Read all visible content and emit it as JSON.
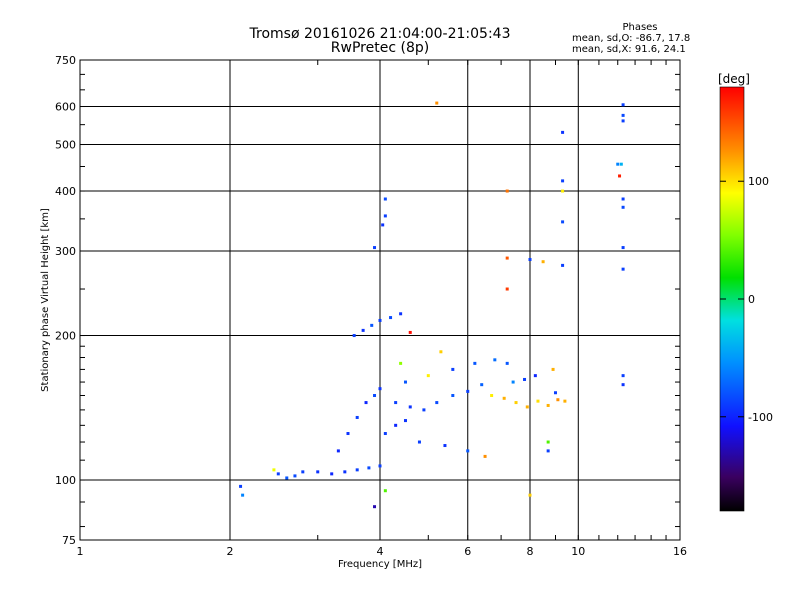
{
  "header": {
    "title_line1": "Tromsø 20161026 21:04:00-21:05:43",
    "title_line2": "RwPretec (8p)",
    "phases_title": "Phases",
    "stats_o": "mean, sd,O: -86.7, 17.8",
    "stats_x": "mean, sd,X:  91.6, 24.1"
  },
  "chart_data": {
    "type": "scatter",
    "xlabel": "Frequency [MHz]",
    "ylabel": "Stationary phase Virtual Height [km]",
    "x_scale": "log",
    "y_scale": "log",
    "xlim": [
      1,
      16
    ],
    "ylim": [
      75,
      750
    ],
    "x_ticks": [
      1,
      2,
      4,
      6,
      8,
      10,
      16
    ],
    "x_tick_labels": [
      "1",
      "2",
      "4",
      "6",
      "8",
      "10",
      "16"
    ],
    "y_ticks": [
      75,
      100,
      200,
      300,
      400,
      500,
      600,
      750
    ],
    "y_tick_labels": [
      "75",
      "100",
      "200",
      "300",
      "400",
      "500",
      "600",
      "750"
    ],
    "grid": true,
    "colorbar": {
      "label": "[deg]",
      "range": [
        -180,
        180
      ],
      "ticks": [
        100,
        0,
        -100
      ],
      "tick_labels": [
        "100",
        "0",
        "-100"
      ]
    },
    "points": [
      {
        "x": 2.1,
        "y": 97,
        "phase": -90
      },
      {
        "x": 2.12,
        "y": 93,
        "phase": -60
      },
      {
        "x": 2.45,
        "y": 105,
        "phase": 90
      },
      {
        "x": 2.5,
        "y": 103,
        "phase": -90
      },
      {
        "x": 2.6,
        "y": 101,
        "phase": -80
      },
      {
        "x": 2.7,
        "y": 102,
        "phase": -85
      },
      {
        "x": 2.8,
        "y": 104,
        "phase": -90
      },
      {
        "x": 3.0,
        "y": 104,
        "phase": -95
      },
      {
        "x": 3.2,
        "y": 103,
        "phase": -100
      },
      {
        "x": 3.4,
        "y": 104,
        "phase": -95
      },
      {
        "x": 3.6,
        "y": 105,
        "phase": -90
      },
      {
        "x": 3.8,
        "y": 106,
        "phase": -85
      },
      {
        "x": 4.0,
        "y": 107,
        "phase": -90
      },
      {
        "x": 3.3,
        "y": 115,
        "phase": -100
      },
      {
        "x": 3.45,
        "y": 125,
        "phase": -95
      },
      {
        "x": 3.6,
        "y": 135,
        "phase": -90
      },
      {
        "x": 3.75,
        "y": 145,
        "phase": -100
      },
      {
        "x": 3.9,
        "y": 150,
        "phase": -85
      },
      {
        "x": 4.0,
        "y": 155,
        "phase": -95
      },
      {
        "x": 3.55,
        "y": 200,
        "phase": -90
      },
      {
        "x": 3.7,
        "y": 205,
        "phase": -95
      },
      {
        "x": 3.85,
        "y": 210,
        "phase": -80
      },
      {
        "x": 4.0,
        "y": 215,
        "phase": -90
      },
      {
        "x": 4.2,
        "y": 218,
        "phase": -85
      },
      {
        "x": 4.4,
        "y": 222,
        "phase": -95
      },
      {
        "x": 3.9,
        "y": 305,
        "phase": -90
      },
      {
        "x": 4.05,
        "y": 340,
        "phase": -95
      },
      {
        "x": 4.1,
        "y": 355,
        "phase": -90
      },
      {
        "x": 4.1,
        "y": 385,
        "phase": -85
      },
      {
        "x": 4.1,
        "y": 125,
        "phase": -90
      },
      {
        "x": 4.3,
        "y": 130,
        "phase": -100
      },
      {
        "x": 4.5,
        "y": 133,
        "phase": -95
      },
      {
        "x": 4.3,
        "y": 145,
        "phase": -90
      },
      {
        "x": 4.6,
        "y": 142,
        "phase": -95
      },
      {
        "x": 4.9,
        "y": 140,
        "phase": -90
      },
      {
        "x": 5.2,
        "y": 145,
        "phase": -85
      },
      {
        "x": 5.6,
        "y": 150,
        "phase": -80
      },
      {
        "x": 6.0,
        "y": 153,
        "phase": -90
      },
      {
        "x": 6.4,
        "y": 158,
        "phase": -75
      },
      {
        "x": 4.5,
        "y": 160,
        "phase": -80
      },
      {
        "x": 5.0,
        "y": 165,
        "phase": 100
      },
      {
        "x": 5.6,
        "y": 170,
        "phase": -90
      },
      {
        "x": 6.2,
        "y": 175,
        "phase": -80
      },
      {
        "x": 6.8,
        "y": 178,
        "phase": -70
      },
      {
        "x": 4.4,
        "y": 175,
        "phase": 60
      },
      {
        "x": 5.3,
        "y": 185,
        "phase": 110
      },
      {
        "x": 4.8,
        "y": 120,
        "phase": -90
      },
      {
        "x": 5.4,
        "y": 118,
        "phase": -95
      },
      {
        "x": 6.0,
        "y": 115,
        "phase": -80
      },
      {
        "x": 6.7,
        "y": 150,
        "phase": 100
      },
      {
        "x": 7.1,
        "y": 148,
        "phase": 120
      },
      {
        "x": 7.5,
        "y": 145,
        "phase": 110
      },
      {
        "x": 7.9,
        "y": 142,
        "phase": 120
      },
      {
        "x": 8.3,
        "y": 146,
        "phase": 105
      },
      {
        "x": 8.7,
        "y": 143,
        "phase": 120
      },
      {
        "x": 9.1,
        "y": 147,
        "phase": 130
      },
      {
        "x": 9.4,
        "y": 146,
        "phase": 120
      },
      {
        "x": 7.4,
        "y": 160,
        "phase": -60
      },
      {
        "x": 7.8,
        "y": 162,
        "phase": -90
      },
      {
        "x": 8.2,
        "y": 165,
        "phase": -100
      },
      {
        "x": 8.9,
        "y": 170,
        "phase": 120
      },
      {
        "x": 7.2,
        "y": 175,
        "phase": -80
      },
      {
        "x": 9.0,
        "y": 152,
        "phase": -90
      },
      {
        "x": 6.5,
        "y": 112,
        "phase": 130
      },
      {
        "x": 8.0,
        "y": 93,
        "phase": 110
      },
      {
        "x": 8.7,
        "y": 120,
        "phase": 40
      },
      {
        "x": 8.7,
        "y": 115,
        "phase": -90
      },
      {
        "x": 5.2,
        "y": 610,
        "phase": 130
      },
      {
        "x": 7.2,
        "y": 400,
        "phase": 140
      },
      {
        "x": 7.2,
        "y": 290,
        "phase": 150
      },
      {
        "x": 7.2,
        "y": 250,
        "phase": 160
      },
      {
        "x": 8.0,
        "y": 288,
        "phase": -90
      },
      {
        "x": 8.5,
        "y": 285,
        "phase": 120
      },
      {
        "x": 9.3,
        "y": 530,
        "phase": -95
      },
      {
        "x": 9.3,
        "y": 420,
        "phase": -90
      },
      {
        "x": 9.3,
        "y": 400,
        "phase": 100
      },
      {
        "x": 9.3,
        "y": 345,
        "phase": -85
      },
      {
        "x": 9.3,
        "y": 280,
        "phase": -90
      },
      {
        "x": 12.3,
        "y": 605,
        "phase": -90
      },
      {
        "x": 12.3,
        "y": 575,
        "phase": -85
      },
      {
        "x": 12.3,
        "y": 560,
        "phase": -90
      },
      {
        "x": 12.0,
        "y": 455,
        "phase": -60
      },
      {
        "x": 12.2,
        "y": 455,
        "phase": -40
      },
      {
        "x": 12.1,
        "y": 430,
        "phase": 170
      },
      {
        "x": 12.3,
        "y": 385,
        "phase": -90
      },
      {
        "x": 12.3,
        "y": 370,
        "phase": -85
      },
      {
        "x": 12.3,
        "y": 305,
        "phase": -90
      },
      {
        "x": 12.3,
        "y": 275,
        "phase": -90
      },
      {
        "x": 12.3,
        "y": 165,
        "phase": -90
      },
      {
        "x": 12.3,
        "y": 158,
        "phase": -95
      },
      {
        "x": 4.1,
        "y": 95,
        "phase": 40
      },
      {
        "x": 3.9,
        "y": 88,
        "phase": -130
      },
      {
        "x": 4.6,
        "y": 203,
        "phase": 175
      }
    ]
  }
}
